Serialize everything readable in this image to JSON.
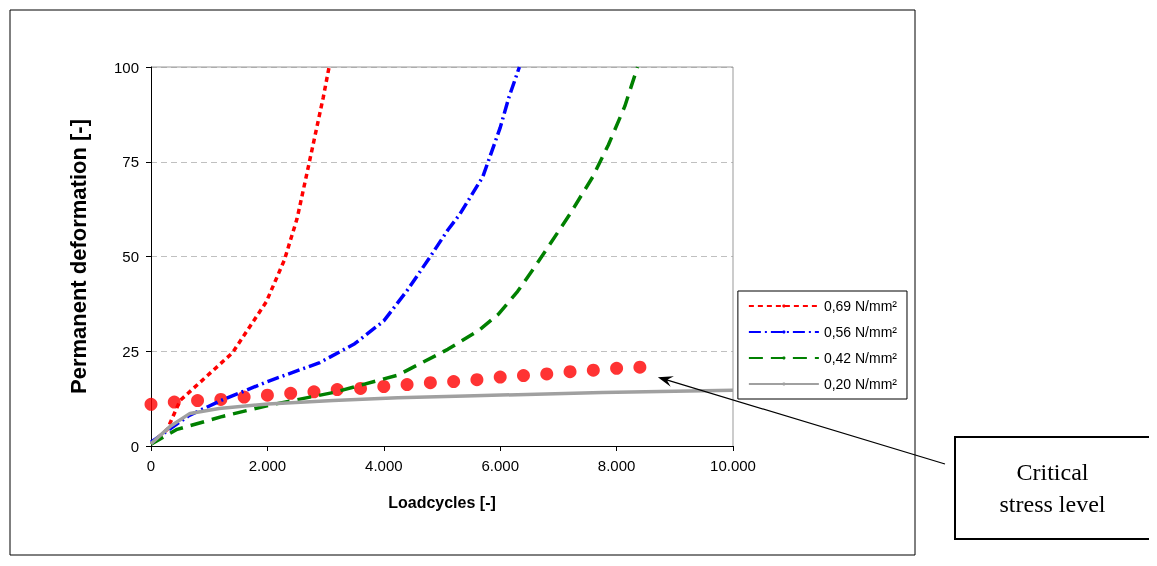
{
  "chart_data": {
    "type": "line",
    "xlabel": "Loadcycles [-]",
    "ylabel": "Permanent deformation [-]",
    "xlim": [
      0,
      10000
    ],
    "xticks": [
      0,
      {
        "value": 2000,
        "label": "2.000"
      },
      {
        "value": 4000,
        "label": "4.000"
      },
      {
        "value": 6000,
        "label": "6.000"
      },
      {
        "value": 8000,
        "label": "8.000"
      },
      {
        "value": 10000,
        "label": "10.000"
      }
    ],
    "ylim": [
      0,
      100
    ],
    "yticks": [
      0,
      25,
      50,
      75,
      100
    ],
    "grid": "y",
    "legend": "right",
    "marker": "none",
    "series": [
      {
        "name": "0,69 N/mm²",
        "color": "#ff0000",
        "line_style": "dashed",
        "x": [
          0,
          280,
          500,
          1400,
          1980,
          2290,
          2510,
          2680,
          2820,
          2960,
          3060
        ],
        "values": [
          0.6,
          4.4,
          12,
          24.6,
          38,
          49,
          60,
          72,
          82,
          92,
          100
        ]
      },
      {
        "name": "0,56 N/mm²",
        "color": "#0000ff",
        "line_style": "dashdot",
        "x": [
          0,
          650,
          1200,
          2000,
          2900,
          3500,
          4000,
          4400,
          4800,
          5100,
          5300,
          5700,
          6000,
          6150,
          6330
        ],
        "values": [
          1,
          8,
          12,
          17,
          22,
          27,
          33,
          41,
          50,
          57,
          61,
          71,
          84,
          92,
          100
        ]
      },
      {
        "name": "0,42 N/mm²",
        "color": "#008000",
        "line_style": "longdash",
        "x": [
          0,
          450,
          1230,
          2010,
          3130,
          4240,
          5100,
          5640,
          5970,
          6300,
          6640,
          7190,
          7590,
          7860,
          8140,
          8360
        ],
        "values": [
          0.5,
          4.4,
          7.8,
          10.7,
          14.1,
          18.7,
          25.5,
          30.6,
          34.8,
          40.8,
          48.3,
          61,
          71,
          79.5,
          89.6,
          100
        ]
      },
      {
        "name": "0,20 N/mm²",
        "color": "#a0a0a0",
        "line_style": "solid",
        "x": [
          0,
          340,
          670,
          1170,
          2010,
          3130,
          4240,
          5400,
          7750,
          10000
        ],
        "values": [
          0.6,
          5.3,
          8.6,
          9.9,
          11.1,
          12,
          12.7,
          13.2,
          14.1,
          14.7
        ]
      },
      {
        "type": "scatter",
        "marker": "circle",
        "color": "#ff0000",
        "x": [
          0,
          400,
          800,
          1200,
          1600,
          2000,
          2400,
          2800,
          3200,
          3600,
          4000,
          4400,
          4800,
          5200,
          5600,
          6000,
          6400,
          6800,
          7200,
          7600,
          8000,
          8400
        ],
        "values": [
          11.0,
          11.6,
          12.0,
          12.3,
          12.9,
          13.4,
          13.9,
          14.3,
          14.9,
          15.2,
          15.7,
          16.2,
          16.7,
          17.0,
          17.5,
          18.2,
          18.6,
          19.0,
          19.6,
          20.0,
          20.5,
          20.8
        ]
      }
    ],
    "annotations": [
      "Critical\nstress level"
    ]
  }
}
